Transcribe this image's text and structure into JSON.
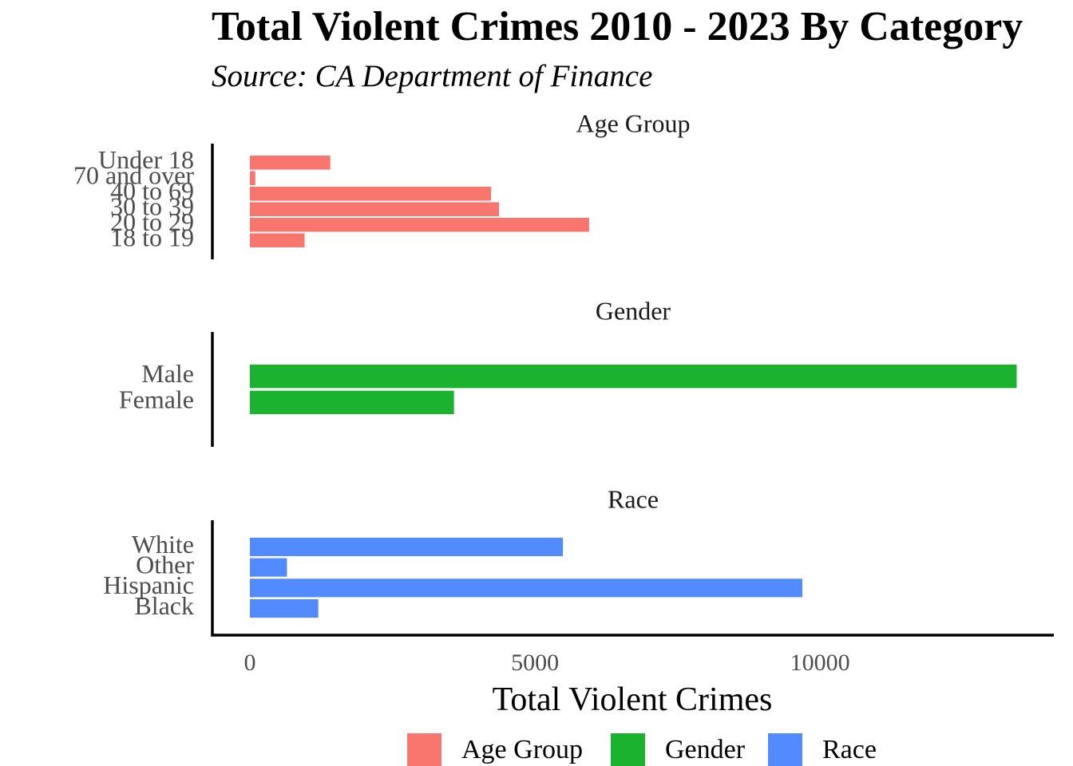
{
  "chart_data": {
    "type": "bar",
    "orientation": "horizontal",
    "title": "Total Violent Crimes 2010 - 2023 By Category",
    "subtitle": "Source: CA Department of Finance",
    "xlabel": "Total Violent Crimes",
    "ylabel": "",
    "xlim": [
      0,
      14200
    ],
    "x_ticks": [
      0,
      5000,
      10000
    ],
    "grid": false,
    "legend_position": "bottom",
    "facets": [
      {
        "name": "Age Group",
        "color": "#F8766D",
        "categories": [
          "Under 18",
          "70 and over",
          "40 to 69",
          "30 to 39",
          "20 to 29",
          "18 to 19"
        ],
        "values": [
          1410,
          95,
          4230,
          4370,
          5950,
          960
        ]
      },
      {
        "name": "Gender",
        "color": "#1AB22F",
        "categories": [
          "Male",
          "Female"
        ],
        "values": [
          13450,
          3580
        ]
      },
      {
        "name": "Race",
        "color": "#528BFF",
        "categories": [
          "White",
          "Other",
          "Hispanic",
          "Black"
        ],
        "values": [
          5490,
          650,
          9690,
          1200
        ]
      }
    ],
    "legend": [
      {
        "label": "Age Group",
        "color": "#F8766D"
      },
      {
        "label": "Gender",
        "color": "#1AB22F"
      },
      {
        "label": "Race",
        "color": "#528BFF"
      }
    ]
  }
}
